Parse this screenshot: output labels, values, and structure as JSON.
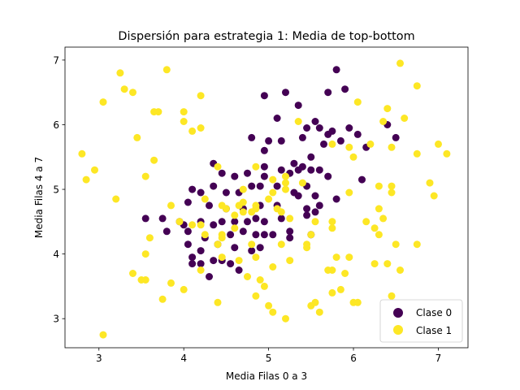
{
  "chart_data": {
    "type": "scatter",
    "title": "Dispersión para estrategia 1: Media de top-bottom",
    "xlabel": "Media Filas 0 a 3",
    "ylabel": "Media Filas 4 a 7",
    "xlim": [
      2.6,
      7.35
    ],
    "ylim": [
      2.55,
      7.2
    ],
    "xticks": [
      3,
      4,
      5,
      6,
      7
    ],
    "yticks": [
      3,
      4,
      5,
      6,
      7
    ],
    "grid": false,
    "legend_position": "lower right",
    "series": [
      {
        "name": "Clase 0",
        "color": "#440154",
        "points": [
          [
            5.8,
            6.85
          ],
          [
            5.7,
            6.5
          ],
          [
            5.9,
            6.55
          ],
          [
            5.2,
            6.5
          ],
          [
            4.95,
            6.45
          ],
          [
            5.35,
            6.3
          ],
          [
            5.55,
            6.05
          ],
          [
            5.1,
            6.1
          ],
          [
            5.45,
            5.95
          ],
          [
            5.6,
            5.95
          ],
          [
            5.7,
            5.85
          ],
          [
            5.75,
            5.9
          ],
          [
            5.95,
            5.95
          ],
          [
            5.85,
            5.75
          ],
          [
            5.65,
            5.7
          ],
          [
            6.05,
            5.85
          ],
          [
            6.15,
            5.65
          ],
          [
            6.4,
            6.0
          ],
          [
            6.5,
            5.8
          ],
          [
            5.0,
            5.75
          ],
          [
            5.15,
            5.75
          ],
          [
            5.4,
            5.8
          ],
          [
            4.8,
            5.8
          ],
          [
            4.95,
            5.6
          ],
          [
            5.5,
            5.5
          ],
          [
            5.3,
            5.4
          ],
          [
            5.4,
            5.35
          ],
          [
            5.5,
            5.3
          ],
          [
            5.6,
            5.3
          ],
          [
            5.7,
            5.2
          ],
          [
            4.35,
            5.4
          ],
          [
            4.45,
            5.25
          ],
          [
            4.6,
            5.2
          ],
          [
            4.75,
            5.25
          ],
          [
            4.95,
            5.35
          ],
          [
            4.95,
            5.2
          ],
          [
            5.15,
            5.3
          ],
          [
            5.25,
            5.25
          ],
          [
            5.35,
            5.3
          ],
          [
            4.1,
            5.0
          ],
          [
            4.2,
            4.95
          ],
          [
            4.35,
            5.05
          ],
          [
            4.5,
            4.95
          ],
          [
            4.65,
            4.95
          ],
          [
            4.8,
            5.05
          ],
          [
            4.9,
            5.05
          ],
          [
            5.1,
            5.05
          ],
          [
            5.3,
            4.95
          ],
          [
            5.45,
            5.05
          ],
          [
            5.35,
            4.9
          ],
          [
            5.55,
            4.9
          ],
          [
            5.8,
            4.85
          ],
          [
            6.1,
            5.15
          ],
          [
            4.05,
            4.8
          ],
          [
            4.3,
            4.75
          ],
          [
            4.5,
            4.7
          ],
          [
            4.7,
            4.7
          ],
          [
            4.9,
            4.75
          ],
          [
            5.1,
            4.75
          ],
          [
            5.45,
            4.7
          ],
          [
            5.6,
            4.75
          ],
          [
            3.55,
            4.55
          ],
          [
            3.75,
            4.55
          ],
          [
            3.95,
            4.5
          ],
          [
            4.0,
            4.45
          ],
          [
            4.2,
            4.5
          ],
          [
            4.35,
            4.45
          ],
          [
            4.45,
            4.5
          ],
          [
            4.6,
            4.5
          ],
          [
            4.75,
            4.5
          ],
          [
            4.85,
            4.55
          ],
          [
            4.95,
            4.5
          ],
          [
            5.15,
            4.55
          ],
          [
            5.45,
            4.6
          ],
          [
            5.55,
            4.65
          ],
          [
            3.8,
            4.35
          ],
          [
            4.05,
            4.35
          ],
          [
            4.25,
            4.25
          ],
          [
            4.55,
            4.3
          ],
          [
            4.7,
            4.35
          ],
          [
            4.85,
            4.3
          ],
          [
            4.95,
            4.3
          ],
          [
            5.05,
            4.3
          ],
          [
            5.25,
            4.35
          ],
          [
            5.5,
            4.3
          ],
          [
            4.05,
            4.15
          ],
          [
            4.2,
            4.05
          ],
          [
            4.4,
            4.15
          ],
          [
            4.6,
            4.1
          ],
          [
            4.8,
            4.05
          ],
          [
            4.9,
            4.1
          ],
          [
            5.25,
            4.25
          ],
          [
            4.2,
            3.85
          ],
          [
            4.35,
            3.9
          ],
          [
            4.45,
            3.9
          ],
          [
            4.55,
            3.85
          ],
          [
            4.65,
            3.75
          ],
          [
            4.1,
            3.95
          ],
          [
            4.1,
            3.85
          ],
          [
            4.3,
            3.65
          ]
        ]
      },
      {
        "name": "Clase 1",
        "color": "#fde725",
        "points": [
          [
            3.25,
            6.8
          ],
          [
            3.3,
            6.55
          ],
          [
            3.4,
            6.5
          ],
          [
            3.05,
            6.35
          ],
          [
            3.8,
            6.85
          ],
          [
            4.2,
            6.45
          ],
          [
            6.55,
            6.95
          ],
          [
            6.05,
            6.35
          ],
          [
            6.75,
            6.6
          ],
          [
            6.4,
            6.25
          ],
          [
            6.6,
            6.1
          ],
          [
            6.35,
            6.05
          ],
          [
            3.65,
            6.2
          ],
          [
            3.7,
            6.2
          ],
          [
            4.0,
            6.2
          ],
          [
            4.0,
            6.05
          ],
          [
            4.1,
            5.9
          ],
          [
            4.2,
            5.95
          ],
          [
            3.45,
            5.8
          ],
          [
            5.35,
            6.05
          ],
          [
            6.2,
            5.7
          ],
          [
            5.75,
            5.7
          ],
          [
            5.95,
            5.65
          ],
          [
            6.45,
            5.65
          ],
          [
            2.8,
            5.55
          ],
          [
            3.65,
            5.45
          ],
          [
            6.0,
            5.5
          ],
          [
            6.75,
            5.55
          ],
          [
            7.0,
            5.7
          ],
          [
            7.1,
            5.55
          ],
          [
            4.4,
            5.35
          ],
          [
            4.85,
            5.35
          ],
          [
            5.2,
            5.2
          ],
          [
            5.05,
            5.15
          ],
          [
            2.95,
            5.3
          ],
          [
            2.85,
            5.15
          ],
          [
            3.55,
            5.2
          ],
          [
            6.3,
            5.05
          ],
          [
            6.45,
            5.05
          ],
          [
            6.9,
            5.1
          ],
          [
            6.95,
            4.9
          ],
          [
            5.2,
            5.1
          ],
          [
            5.2,
            5.0
          ],
          [
            5.4,
            5.1
          ],
          [
            4.7,
            5.0
          ],
          [
            5.05,
            4.95
          ],
          [
            5.0,
            4.85
          ],
          [
            5.95,
            4.95
          ],
          [
            6.45,
            4.95
          ],
          [
            4.25,
            4.85
          ],
          [
            4.45,
            4.75
          ],
          [
            4.5,
            4.7
          ],
          [
            4.7,
            4.8
          ],
          [
            4.65,
            4.75
          ],
          [
            4.85,
            4.75
          ],
          [
            4.85,
            4.7
          ],
          [
            4.6,
            4.6
          ],
          [
            4.7,
            4.65
          ],
          [
            4.8,
            4.65
          ],
          [
            5.1,
            4.7
          ],
          [
            5.15,
            4.65
          ],
          [
            5.25,
            4.55
          ],
          [
            3.2,
            4.85
          ],
          [
            3.85,
            4.75
          ],
          [
            5.55,
            4.5
          ],
          [
            5.75,
            4.5
          ],
          [
            5.75,
            4.4
          ],
          [
            6.15,
            4.5
          ],
          [
            6.35,
            4.55
          ],
          [
            6.3,
            4.7
          ],
          [
            6.25,
            4.4
          ],
          [
            3.95,
            4.5
          ],
          [
            4.1,
            4.45
          ],
          [
            4.2,
            4.45
          ],
          [
            4.45,
            4.3
          ],
          [
            4.45,
            4.25
          ],
          [
            4.6,
            4.4
          ],
          [
            4.4,
            4.15
          ],
          [
            3.6,
            4.25
          ],
          [
            3.55,
            4.0
          ],
          [
            4.25,
            4.3
          ],
          [
            4.8,
            4.15
          ],
          [
            5.45,
            4.15
          ],
          [
            5.5,
            4.3
          ],
          [
            6.3,
            4.3
          ],
          [
            6.5,
            4.15
          ],
          [
            6.75,
            4.15
          ],
          [
            4.85,
            3.95
          ],
          [
            5.15,
            4.15
          ],
          [
            5.45,
            4.1
          ],
          [
            4.45,
            3.95
          ],
          [
            4.2,
            3.75
          ],
          [
            4.65,
            3.9
          ],
          [
            5.8,
            3.95
          ],
          [
            5.95,
            3.95
          ],
          [
            4.75,
            3.65
          ],
          [
            5.05,
            3.8
          ],
          [
            5.25,
            3.9
          ],
          [
            5.75,
            3.75
          ],
          [
            5.7,
            3.75
          ],
          [
            6.25,
            3.85
          ],
          [
            6.4,
            3.85
          ],
          [
            6.55,
            3.75
          ],
          [
            5.9,
            3.7
          ],
          [
            3.4,
            3.7
          ],
          [
            3.5,
            3.6
          ],
          [
            3.55,
            3.6
          ],
          [
            3.85,
            3.55
          ],
          [
            4.0,
            3.45
          ],
          [
            4.9,
            3.6
          ],
          [
            4.95,
            3.5
          ],
          [
            3.75,
            3.3
          ],
          [
            4.4,
            3.25
          ],
          [
            4.85,
            3.35
          ],
          [
            5.0,
            3.2
          ],
          [
            5.5,
            3.2
          ],
          [
            5.55,
            3.25
          ],
          [
            6.0,
            3.25
          ],
          [
            6.05,
            3.25
          ],
          [
            6.45,
            3.35
          ],
          [
            5.05,
            3.1
          ],
          [
            5.2,
            3.0
          ],
          [
            5.6,
            3.1
          ],
          [
            5.75,
            3.4
          ],
          [
            5.85,
            3.45
          ],
          [
            3.05,
            2.75
          ]
        ]
      }
    ]
  }
}
